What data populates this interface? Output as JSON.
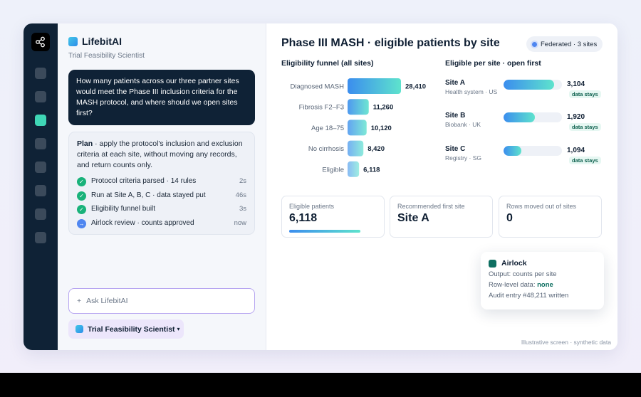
{
  "sidebar": {
    "logo_icon": "nodes-logo-icon",
    "items": [
      {
        "icon": "nav-item-1-icon",
        "active": false
      },
      {
        "icon": "nav-item-2-icon",
        "active": false
      },
      {
        "icon": "nav-item-3-icon",
        "active": true
      },
      {
        "icon": "nav-item-4-icon",
        "active": false
      },
      {
        "icon": "nav-item-5-icon",
        "active": false
      },
      {
        "icon": "nav-item-6-icon",
        "active": false
      },
      {
        "icon": "nav-item-7-icon",
        "active": false
      },
      {
        "icon": "nav-item-8-icon",
        "active": false
      }
    ],
    "active_color": "#3fd6b6"
  },
  "chat": {
    "brand_name": "LifebitAI",
    "brand_sub": "Trial Feasibility Scientist",
    "user_message": "How many patients across our three partner sites would meet the Phase III inclusion criteria for the MASH protocol, and where should we open sites first?",
    "plan": {
      "label": "Plan",
      "text": " · apply the protocol's inclusion and exclusion criteria at each site, without moving any records, and return counts only.",
      "steps": [
        {
          "label": "Protocol criteria parsed · 14 rules",
          "time": "2s",
          "status": "done"
        },
        {
          "label": "Run at Site A, B, C · data stayed put",
          "time": "46s",
          "status": "done"
        },
        {
          "label": "Eligibility funnel built",
          "time": "3s",
          "status": "done"
        },
        {
          "label": "Airlock review · counts approved",
          "time": "now",
          "status": "in-progress"
        }
      ]
    },
    "input_placeholder": "Ask LifebitAI",
    "input_prefix": "+",
    "persona_label": "Trial Feasibility Scientist",
    "persona_caret": "▾"
  },
  "main": {
    "title": "Phase III MASH · eligible patients by site",
    "badge": "Federated · 3 sites",
    "funnel_heading": "Eligibility funnel (all sites)",
    "sites_heading": "Eligible per site · open first",
    "sites": [
      {
        "name": "Site A",
        "sub": "Health system · US",
        "value": 3104,
        "value_label": "3,104",
        "tag": "data stays"
      },
      {
        "name": "Site B",
        "sub": "Biobank · UK",
        "value": 1920,
        "value_label": "1,920",
        "tag": "data stays"
      },
      {
        "name": "Site C",
        "sub": "Registry · SG",
        "value": 1094,
        "value_label": "1,094",
        "tag": "data stays"
      }
    ],
    "site_max": 3600,
    "kpis": [
      {
        "label": "Eligible patients",
        "value": "6,118"
      },
      {
        "label": "Recommended first site",
        "value": "Site A"
      },
      {
        "label": "Rows moved out of sites",
        "value": "0"
      }
    ],
    "airlock": {
      "title": "Airlock",
      "output": "Output: counts per site",
      "row_level_prefix": "Row-level data: ",
      "row_level_value": "none",
      "audit": "Audit entry #48,211 written"
    },
    "footnote": "Illustrative screen · synthetic data"
  },
  "chart_data": {
    "type": "bar",
    "orientation": "horizontal",
    "title": "Eligibility funnel (all sites)",
    "categories": [
      "Diagnosed MASH",
      "Fibrosis F2–F3",
      "Age 18–75",
      "No cirrhosis",
      "Eligible"
    ],
    "values": [
      28410,
      11260,
      10120,
      8420,
      6118
    ],
    "value_labels": [
      "28,410",
      "11,260",
      "10,120",
      "8,420",
      "6,118"
    ],
    "colors": {
      "start": "#3b8dee",
      "end": "#5ee3cd"
    }
  }
}
